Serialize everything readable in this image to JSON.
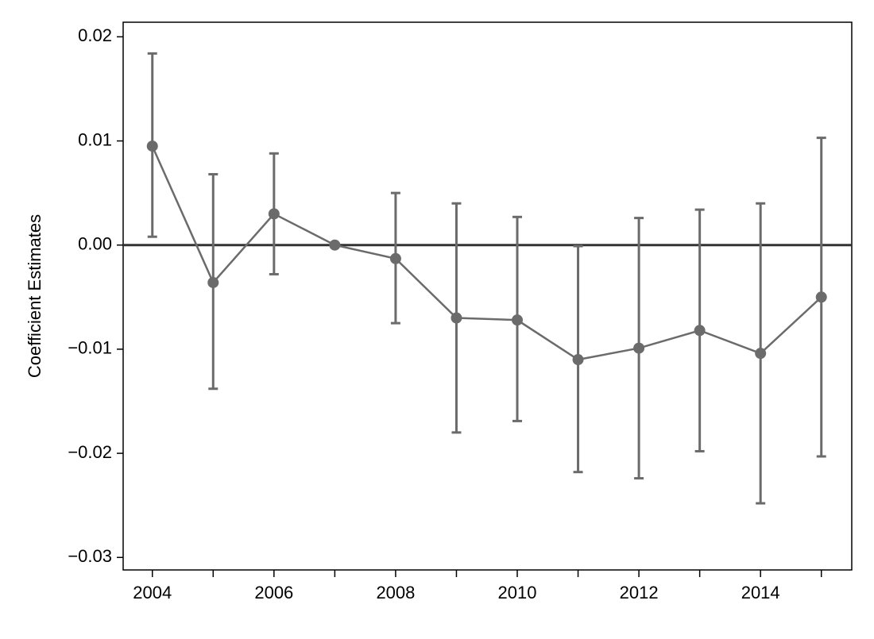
{
  "chart_data": {
    "type": "line",
    "ylabel": "Coefficient Estimates",
    "x": [
      2004,
      2005,
      2006,
      2007,
      2008,
      2009,
      2010,
      2011,
      2012,
      2013,
      2014,
      2015
    ],
    "series": [
      {
        "color": "#6b6b6b",
        "values": [
          0.0095,
          -0.0036,
          0.003,
          0.0,
          -0.0013,
          -0.007,
          -0.0072,
          -0.011,
          -0.0099,
          -0.0082,
          -0.0104,
          -0.005
        ],
        "lower": [
          0.0008,
          -0.0138,
          -0.0028,
          null,
          -0.0075,
          -0.018,
          -0.0169,
          -0.0218,
          -0.0224,
          -0.0198,
          -0.0248,
          -0.0203
        ],
        "upper": [
          0.0184,
          0.0068,
          0.0088,
          null,
          0.005,
          0.004,
          0.0027,
          -0.0001,
          0.0026,
          0.0034,
          0.004,
          0.0103
        ]
      }
    ],
    "xlim": [
      2003.52,
      2015.5
    ],
    "xticks": [
      2004,
      2006,
      2008,
      2010,
      2012,
      2014
    ],
    "xminorticks": [
      2005,
      2007,
      2009,
      2011,
      2013,
      2015
    ],
    "ylim": [
      -0.0312,
      0.0214
    ],
    "yticks": [
      0.02,
      0.01,
      {
        "value": 0,
        "label": "0.00"
      },
      {
        "value": -0.01,
        "label": "−0.01"
      },
      {
        "value": -0.02,
        "label": "−0.02"
      },
      {
        "value": -0.03,
        "label": "−0.03"
      }
    ],
    "hline": 0,
    "hline_color": "#333333"
  }
}
